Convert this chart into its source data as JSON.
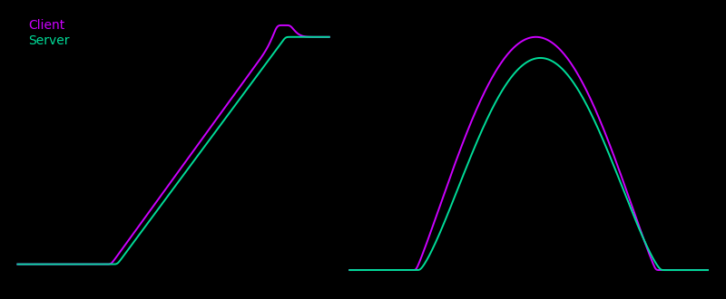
{
  "client_color": "#cc00ff",
  "server_color": "#00dd99",
  "background_color": "#000000",
  "legend_labels": [
    "Client",
    "Server"
  ],
  "legend_fontsize": 10,
  "line_width": 1.4,
  "fig_width": 8.0,
  "fig_height": 3.3,
  "dpi": 100
}
